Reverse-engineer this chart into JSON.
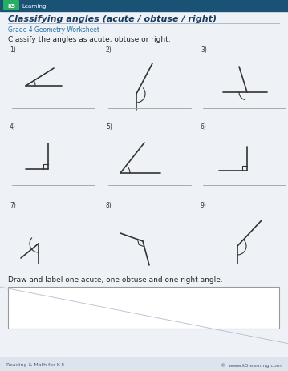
{
  "title": "Classifying angles (acute / obtuse / right)",
  "subtitle": "Grade 4 Geometry Worksheet",
  "instruction": "Classify the angles as acute, obtuse or right.",
  "draw_label": "Draw and label one acute, one obtuse and one right angle.",
  "footer_left": "Reading & Math for K-5",
  "footer_right": "©  www.k5learning.com",
  "bg_color": "#eef2f7",
  "header_bar_color": "#1a5276",
  "title_color": "#1a3a5c",
  "subtitle_color": "#2471a3",
  "line_color": "#333333",
  "answer_line_color": "#aaaaaa",
  "footer_bg_color": "#dde4ee"
}
